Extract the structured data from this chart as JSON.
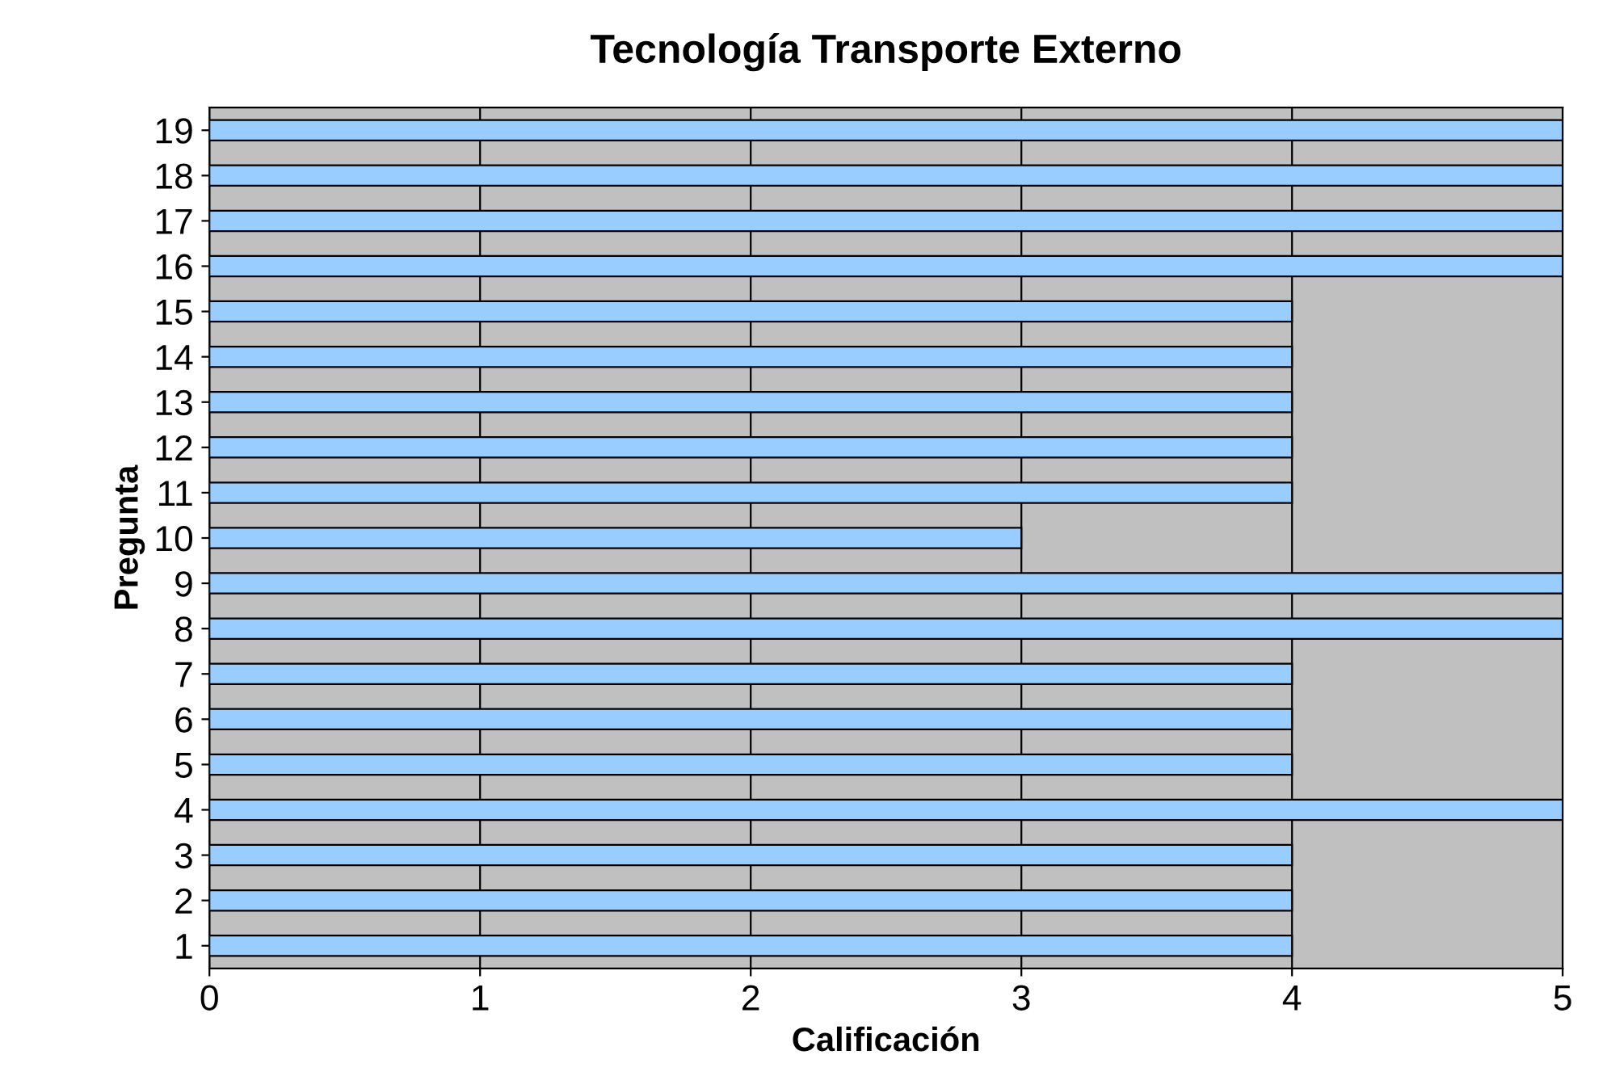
{
  "chart_data": {
    "type": "bar",
    "orientation": "horizontal",
    "title": "Tecnología Transporte Externo",
    "xlabel": "Calificación",
    "ylabel": "Pregunta",
    "categories": [
      "19",
      "18",
      "17",
      "16",
      "15",
      "14",
      "13",
      "12",
      "11",
      "10",
      "9",
      "8",
      "7",
      "6",
      "5",
      "4",
      "3",
      "2",
      "1"
    ],
    "values": [
      5,
      5,
      5,
      5,
      4,
      4,
      4,
      4,
      4,
      3,
      5,
      5,
      4,
      4,
      4,
      5,
      4,
      4,
      4
    ],
    "color": "#99ccff",
    "xlim": [
      0,
      5
    ],
    "xticks": [
      0,
      1,
      2,
      3,
      4,
      5
    ],
    "grid": "x",
    "legend": false
  }
}
